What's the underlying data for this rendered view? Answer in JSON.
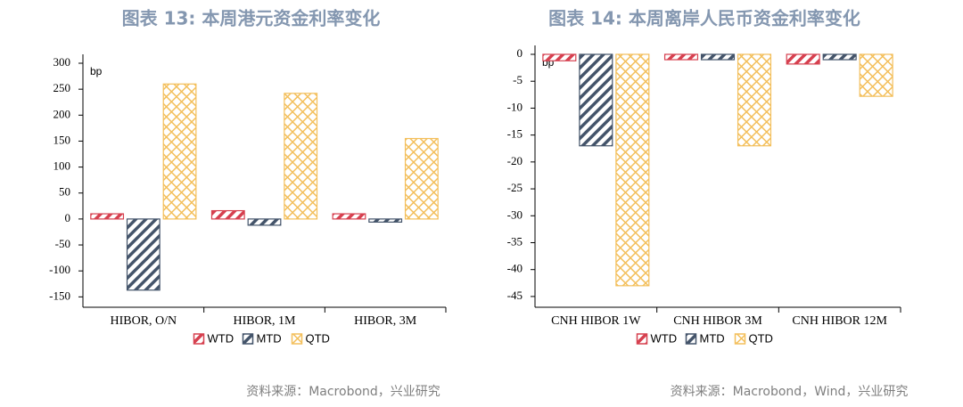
{
  "chart_data": [
    {
      "type": "bar",
      "title": "图表 13: 本周港元资金利率变化",
      "y_label": "bp",
      "categories": [
        "HIBOR, O/N",
        "HIBOR, 1M",
        "HIBOR, 3M"
      ],
      "series": [
        {
          "name": "WTD",
          "color": "#d6404f",
          "pattern": "stripes",
          "values": [
            10,
            16,
            10
          ]
        },
        {
          "name": "MTD",
          "color": "#44546a",
          "pattern": "stripes",
          "values": [
            -137,
            -12,
            -6
          ]
        },
        {
          "name": "QTD",
          "color": "#f3bf5b",
          "pattern": "crosshatch",
          "values": [
            260,
            242,
            155
          ]
        }
      ],
      "ylim": [
        -170,
        300
      ],
      "yticks": [
        -150,
        -100,
        -50,
        0,
        50,
        100,
        150,
        200,
        250,
        300
      ],
      "source": "资料来源：Macrobond，兴业研究"
    },
    {
      "type": "bar",
      "title": "图表 14: 本周离岸人民币资金利率变化",
      "y_label": "bp",
      "categories": [
        "CNH HIBOR 1W",
        "CNH HIBOR 3M",
        "CNH HIBOR 12M"
      ],
      "series": [
        {
          "name": "WTD",
          "color": "#d6404f",
          "pattern": "stripes",
          "values": [
            -1.2,
            -1,
            -1.8
          ]
        },
        {
          "name": "MTD",
          "color": "#44546a",
          "pattern": "stripes",
          "values": [
            -17,
            -1,
            -1
          ]
        },
        {
          "name": "QTD",
          "color": "#f3bf5b",
          "pattern": "crosshatch",
          "values": [
            -43,
            -17,
            -7.8
          ]
        }
      ],
      "ylim": [
        -47,
        0
      ],
      "yticks": [
        -45,
        -40,
        -35,
        -30,
        -25,
        -20,
        -15,
        -10,
        -5,
        0
      ],
      "source": "资料来源：Macrobond，Wind，兴业研究"
    }
  ]
}
